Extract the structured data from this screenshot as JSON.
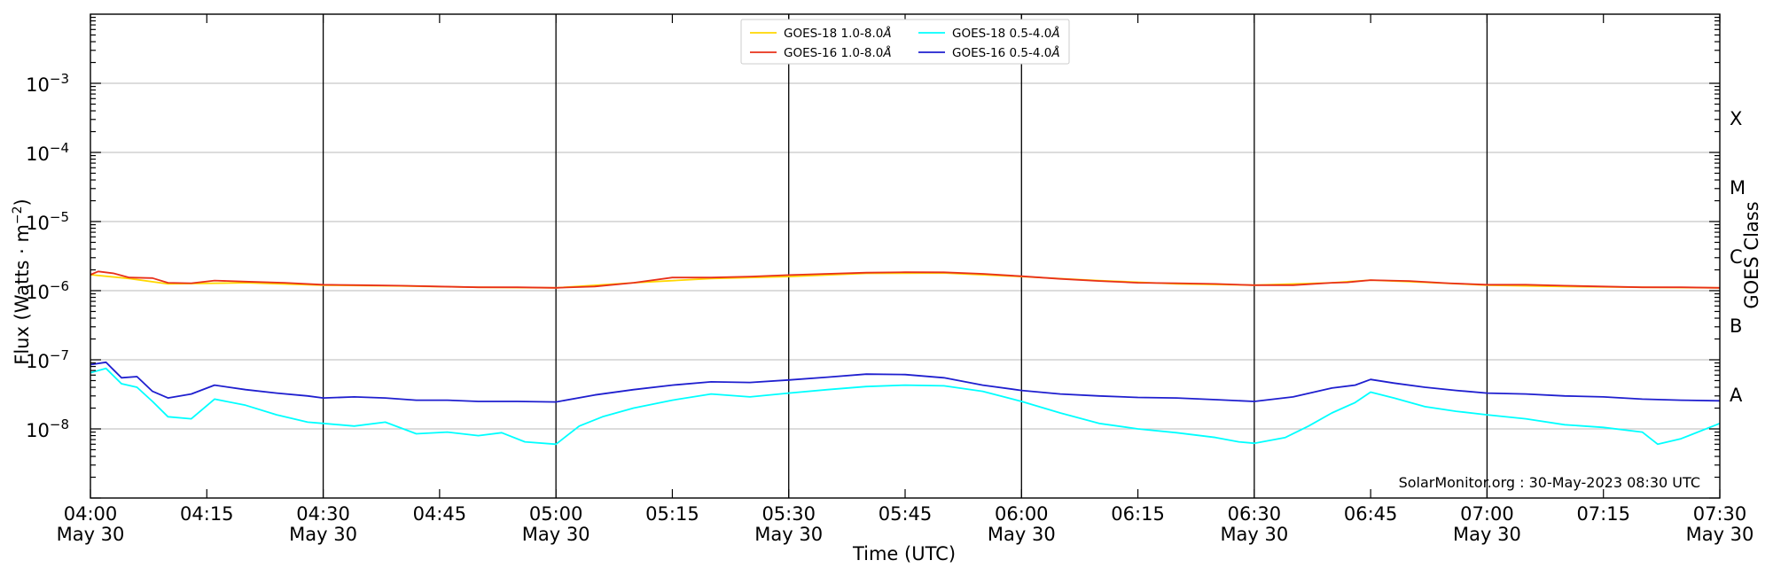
{
  "chart_data": {
    "type": "line",
    "xlabel": "Time (UTC)",
    "ylabel_main": "Flux (Watts · m",
    "ylabel_sup": "−2",
    "ylabel_tail": ")",
    "right_label": "GOES Class",
    "y_scale": "log",
    "ylim": [
      1e-09,
      0.01
    ],
    "xlim": [
      "2023-05-30T04:00",
      "2023-05-30T07:30"
    ],
    "grid": "horizontal at decades; vertical at 30-minute marks",
    "legend_position": "top-center",
    "credit": "SolarMonitor.org : 30-May-2023 08:30 UTC",
    "x_ticks": [
      {
        "time": "04:00",
        "date": "May 30"
      },
      {
        "time": "04:15",
        "date": ""
      },
      {
        "time": "04:30",
        "date": "May 30"
      },
      {
        "time": "04:45",
        "date": ""
      },
      {
        "time": "05:00",
        "date": "May 30"
      },
      {
        "time": "05:15",
        "date": ""
      },
      {
        "time": "05:30",
        "date": "May 30"
      },
      {
        "time": "05:45",
        "date": ""
      },
      {
        "time": "06:00",
        "date": "May 30"
      },
      {
        "time": "06:15",
        "date": ""
      },
      {
        "time": "06:30",
        "date": "May 30"
      },
      {
        "time": "06:45",
        "date": ""
      },
      {
        "time": "07:00",
        "date": "May 30"
      },
      {
        "time": "07:15",
        "date": ""
      },
      {
        "time": "07:30",
        "date": "May 30"
      }
    ],
    "y_ticks": [
      {
        "value": 0.001,
        "base": "10",
        "exp": "−3"
      },
      {
        "value": 0.0001,
        "base": "10",
        "exp": "−4"
      },
      {
        "value": 1e-05,
        "base": "10",
        "exp": "−5"
      },
      {
        "value": 1e-06,
        "base": "10",
        "exp": "−6"
      },
      {
        "value": 1e-07,
        "base": "10",
        "exp": "−7"
      },
      {
        "value": 1e-08,
        "base": "10",
        "exp": "−8"
      }
    ],
    "goes_classes": [
      {
        "label": "X",
        "value": 0.000316
      },
      {
        "label": "M",
        "value": 3.16e-05
      },
      {
        "label": "C",
        "value": 3.16e-06
      },
      {
        "label": "B",
        "value": 3.16e-07
      },
      {
        "label": "A",
        "value": 3.16e-08
      }
    ],
    "series": [
      {
        "name": "GOES-18 1.0-8.0",
        "unit_symbol": "Å",
        "color": "#ffd700",
        "x": [
          "04:00",
          "04:05",
          "04:10",
          "04:20",
          "04:30",
          "04:40",
          "04:50",
          "05:00",
          "05:10",
          "05:20",
          "05:30",
          "05:40",
          "05:50",
          "06:00",
          "06:10",
          "06:20",
          "06:30",
          "06:40",
          "06:45",
          "06:50",
          "07:00",
          "07:10",
          "07:20",
          "07:30"
        ],
        "values": [
          1.7e-06,
          1.5e-06,
          1.25e-06,
          1.3e-06,
          1.2e-06,
          1.17e-06,
          1.12e-06,
          1.1e-06,
          1.3e-06,
          1.5e-06,
          1.6e-06,
          1.78e-06,
          1.8e-06,
          1.6e-06,
          1.4e-06,
          1.25e-06,
          1.2e-06,
          1.3e-06,
          1.42e-06,
          1.35e-06,
          1.2e-06,
          1.15e-06,
          1.12e-06,
          1.1e-06
        ]
      },
      {
        "name": "GOES-16 1.0-8.0",
        "unit_symbol": "Å",
        "color": "#e8301a",
        "x": [
          "04:00",
          "04:01",
          "04:03",
          "04:05",
          "04:08",
          "04:10",
          "04:13",
          "04:16",
          "04:20",
          "04:25",
          "04:30",
          "04:35",
          "04:40",
          "04:45",
          "04:50",
          "04:55",
          "05:00",
          "05:05",
          "05:10",
          "05:15",
          "05:20",
          "05:25",
          "05:30",
          "05:35",
          "05:40",
          "05:45",
          "05:50",
          "05:55",
          "06:00",
          "06:05",
          "06:10",
          "06:15",
          "06:20",
          "06:25",
          "06:30",
          "06:35",
          "06:40",
          "06:42",
          "06:45",
          "06:50",
          "06:55",
          "07:00",
          "07:05",
          "07:10",
          "07:15",
          "07:20",
          "07:25",
          "07:30"
        ],
        "values": [
          1.7e-06,
          1.9e-06,
          1.78e-06,
          1.55e-06,
          1.52e-06,
          1.3e-06,
          1.28e-06,
          1.4e-06,
          1.35e-06,
          1.3e-06,
          1.22e-06,
          1.2e-06,
          1.18e-06,
          1.15e-06,
          1.12e-06,
          1.12e-06,
          1.1e-06,
          1.15e-06,
          1.3e-06,
          1.55e-06,
          1.55e-06,
          1.6e-06,
          1.68e-06,
          1.75e-06,
          1.82e-06,
          1.85e-06,
          1.84e-06,
          1.75e-06,
          1.62e-06,
          1.48e-06,
          1.38e-06,
          1.3e-06,
          1.28e-06,
          1.25e-06,
          1.2e-06,
          1.2e-06,
          1.3e-06,
          1.32e-06,
          1.42e-06,
          1.38e-06,
          1.28e-06,
          1.22e-06,
          1.22e-06,
          1.18e-06,
          1.15e-06,
          1.12e-06,
          1.12e-06,
          1.1e-06
        ]
      },
      {
        "name": "GOES-18 0.5-4.0",
        "unit_symbol": "Å",
        "color": "#00ffff",
        "x": [
          "04:00",
          "04:02",
          "04:04",
          "04:06",
          "04:08",
          "04:10",
          "04:13",
          "04:16",
          "04:20",
          "04:24",
          "04:28",
          "04:30",
          "04:34",
          "04:38",
          "04:42",
          "04:46",
          "04:50",
          "04:53",
          "04:56",
          "05:00",
          "05:03",
          "05:06",
          "05:10",
          "05:15",
          "05:20",
          "05:25",
          "05:30",
          "05:35",
          "05:40",
          "05:45",
          "05:50",
          "05:55",
          "06:00",
          "06:05",
          "06:10",
          "06:15",
          "06:20",
          "06:25",
          "06:28",
          "06:30",
          "06:34",
          "06:37",
          "06:40",
          "06:43",
          "06:45",
          "06:48",
          "06:52",
          "06:56",
          "07:00",
          "07:05",
          "07:10",
          "07:15",
          "07:20",
          "07:22",
          "07:25",
          "07:30"
        ],
        "values": [
          6.5e-08,
          7.5e-08,
          4.5e-08,
          4e-08,
          2.5e-08,
          1.5e-08,
          1.4e-08,
          2.7e-08,
          2.2e-08,
          1.6e-08,
          1.25e-08,
          1.2e-08,
          1.1e-08,
          1.25e-08,
          8.5e-09,
          9e-09,
          8e-09,
          8.8e-09,
          6.5e-09,
          6e-09,
          1.1e-08,
          1.5e-08,
          2e-08,
          2.6e-08,
          3.2e-08,
          2.9e-08,
          3.3e-08,
          3.7e-08,
          4.1e-08,
          4.3e-08,
          4.2e-08,
          3.5e-08,
          2.5e-08,
          1.7e-08,
          1.2e-08,
          1e-08,
          8.8e-09,
          7.5e-09,
          6.5e-09,
          6.2e-09,
          7.5e-09,
          1.1e-08,
          1.7e-08,
          2.4e-08,
          3.4e-08,
          2.8e-08,
          2.1e-08,
          1.8e-08,
          1.6e-08,
          1.4e-08,
          1.15e-08,
          1.05e-08,
          9e-09,
          6e-09,
          7.2e-09,
          1.2e-08
        ]
      },
      {
        "name": "GOES-16 0.5-4.0",
        "unit_symbol": "Å",
        "color": "#1f1fcf",
        "x": [
          "04:00",
          "04:02",
          "04:04",
          "04:06",
          "04:08",
          "04:10",
          "04:13",
          "04:16",
          "04:20",
          "04:24",
          "04:28",
          "04:30",
          "04:34",
          "04:38",
          "04:42",
          "04:46",
          "04:50",
          "04:55",
          "05:00",
          "05:05",
          "05:10",
          "05:15",
          "05:20",
          "05:25",
          "05:30",
          "05:35",
          "05:40",
          "05:45",
          "05:50",
          "05:55",
          "06:00",
          "06:05",
          "06:10",
          "06:15",
          "06:20",
          "06:25",
          "06:30",
          "06:35",
          "06:40",
          "06:43",
          "06:45",
          "06:48",
          "06:52",
          "06:56",
          "07:00",
          "07:05",
          "07:10",
          "07:15",
          "07:20",
          "07:25",
          "07:30"
        ],
        "values": [
          8.5e-08,
          9.2e-08,
          5.5e-08,
          5.7e-08,
          3.5e-08,
          2.8e-08,
          3.2e-08,
          4.3e-08,
          3.7e-08,
          3.3e-08,
          3e-08,
          2.8e-08,
          2.9e-08,
          2.8e-08,
          2.6e-08,
          2.6e-08,
          2.5e-08,
          2.5e-08,
          2.45e-08,
          3.1e-08,
          3.7e-08,
          4.3e-08,
          4.8e-08,
          4.7e-08,
          5.1e-08,
          5.6e-08,
          6.2e-08,
          6.1e-08,
          5.5e-08,
          4.3e-08,
          3.6e-08,
          3.2e-08,
          3e-08,
          2.85e-08,
          2.8e-08,
          2.65e-08,
          2.5e-08,
          2.9e-08,
          3.9e-08,
          4.3e-08,
          5.2e-08,
          4.6e-08,
          4e-08,
          3.6e-08,
          3.3e-08,
          3.2e-08,
          3e-08,
          2.9e-08,
          2.7e-08,
          2.6e-08,
          2.55e-08
        ]
      }
    ]
  }
}
